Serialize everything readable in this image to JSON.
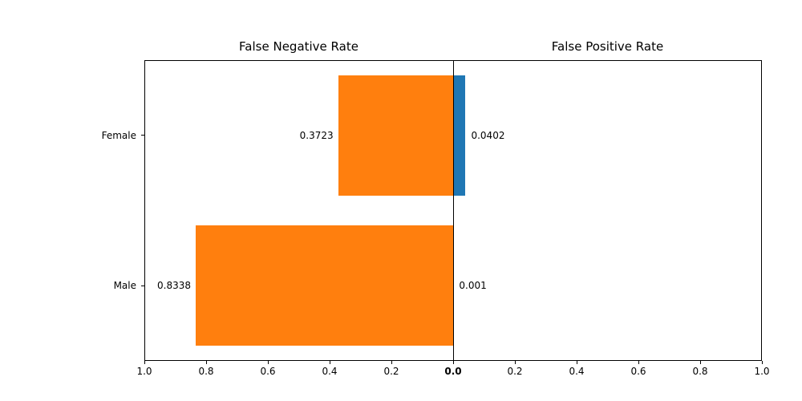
{
  "chart_data": {
    "type": "bar",
    "orientation": "horizontal",
    "layout": "diverging-butterfly",
    "categories": [
      "Female",
      "Male"
    ],
    "series": [
      {
        "name": "False Negative Rate",
        "side": "left",
        "color": "#ff7f0e",
        "values": [
          0.3723,
          0.8338
        ],
        "value_labels": [
          "0.3723",
          "0.8338"
        ]
      },
      {
        "name": "False Positive Rate",
        "side": "right",
        "color": "#1f77b4",
        "values": [
          0.0402,
          0.001
        ],
        "value_labels": [
          "0.0402",
          "0.001"
        ]
      }
    ],
    "titles": {
      "left": "False Negative Rate",
      "right": "False Positive Rate"
    },
    "x_axis": {
      "range": [
        0,
        1
      ],
      "left_ticks": [
        {
          "value": 1.0,
          "label": "1.0"
        },
        {
          "value": 0.8,
          "label": "0.8"
        },
        {
          "value": 0.6,
          "label": "0.6"
        },
        {
          "value": 0.4,
          "label": "0.4"
        },
        {
          "value": 0.2,
          "label": "0.2"
        }
      ],
      "center_tick": {
        "value": 0.0,
        "label": "0.0"
      },
      "right_ticks": [
        {
          "value": 0.2,
          "label": "0.2"
        },
        {
          "value": 0.4,
          "label": "0.4"
        },
        {
          "value": 0.6,
          "label": "0.6"
        },
        {
          "value": 0.8,
          "label": "0.8"
        },
        {
          "value": 1.0,
          "label": "1.0"
        }
      ]
    },
    "grid": false,
    "legend": false
  },
  "colors": {
    "background": "#ffffff",
    "axis": "#000000",
    "text": "#000000"
  }
}
